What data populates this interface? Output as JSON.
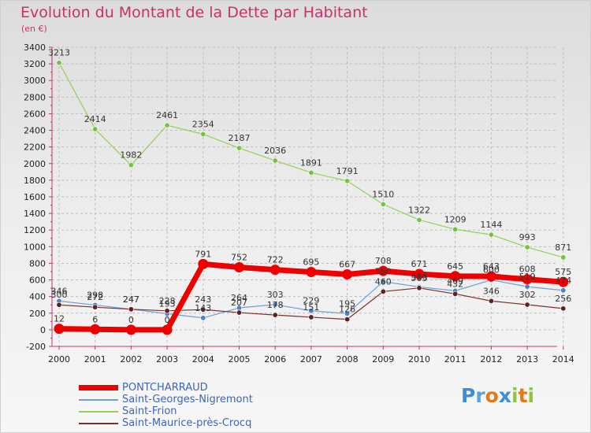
{
  "header": {
    "title": "Evolution du Montant de la Dette par Habitant",
    "subtitle": "(en €)"
  },
  "logo": {
    "text": "Proxiti"
  },
  "colors": {
    "title": "#c8306e",
    "axis_text": "#222222",
    "grid": "#b9b9b9",
    "legend_text": "#3d66b8"
  },
  "chart_data": {
    "type": "line",
    "title": "Evolution du Montant de la Dette par Habitant",
    "subtitle": "(en €)",
    "xlabel": "",
    "ylabel": "",
    "ylim": [
      -200,
      3400
    ],
    "yticks": [
      -200,
      0,
      200,
      400,
      600,
      800,
      1000,
      1200,
      1400,
      1600,
      1800,
      2000,
      2200,
      2400,
      2600,
      2800,
      3000,
      3200,
      3400
    ],
    "categories": [
      "2000",
      "2001",
      "2002",
      "2003",
      "2004",
      "2005",
      "2006",
      "2007",
      "2008",
      "2009",
      "2010",
      "2011",
      "2012",
      "2013",
      "2014"
    ],
    "grid": true,
    "legend_position": "bottom-left",
    "series": [
      {
        "name": "PONTCHARRAUD",
        "color": "#ee0000",
        "marker": "#ee0000",
        "values": [
          12,
          6,
          0,
          0,
          791,
          752,
          722,
          695,
          667,
          708,
          671,
          645,
          643,
          608,
          575
        ],
        "labels": [
          "12",
          "6",
          "0",
          "0",
          "791",
          "752",
          "722",
          "695",
          "667",
          "708",
          "671",
          "645",
          "643",
          "608",
          "575"
        ]
      },
      {
        "name": "Saint-Georges-Nigremont",
        "color": "#6f9fd6",
        "marker": "#4d80c8",
        "values": [
          346,
          298,
          247,
          193,
          143,
          264,
          303,
          229,
          195,
          580,
          516,
          469,
          600,
          519,
          474
        ],
        "labels": [
          "346",
          "298",
          "247",
          "193",
          "143",
          "264",
          "303",
          "229",
          "195",
          "580",
          "516",
          "469",
          "600",
          "519",
          "474"
        ]
      },
      {
        "name": "Saint-Frion",
        "color": "#93d05a",
        "marker": "#78c040",
        "values": [
          3213,
          2414,
          1982,
          2461,
          2354,
          2187,
          2036,
          1891,
          1791,
          1510,
          1322,
          1209,
          1144,
          993,
          871
        ],
        "labels": [
          "3213",
          "2414",
          "1982",
          "2461",
          "2354",
          "2187",
          "2036",
          "1891",
          "1791",
          "1510",
          "1322",
          "1209",
          "1144",
          "993",
          "871"
        ]
      },
      {
        "name": "Saint-Maurice-près-Crocq",
        "color": "#7a2f2f",
        "marker": "#5e2020",
        "values": [
          300,
          272,
          247,
          228,
          243,
          207,
          178,
          151,
          126,
          460,
          503,
          432,
          346,
          302,
          256
        ],
        "labels": [
          "300",
          "272",
          "247",
          "228",
          "243",
          "207",
          "178",
          "151",
          "126",
          "460",
          "503",
          "432",
          "346",
          "302",
          "256"
        ]
      }
    ]
  }
}
